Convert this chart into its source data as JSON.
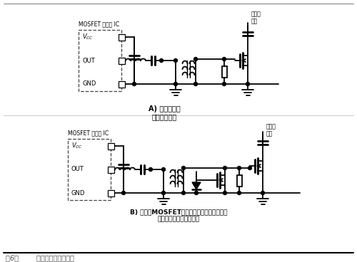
{
  "bg_color": "#ffffff",
  "fig_title": "图6：        栅极驱动变压器应用",
  "circuit_A_label": "A) 单开关正激\n栅极驱动方案",
  "circuit_B_label": "B) 具有从MOSFET移走负栅极驱动电压电路的\n单开关正激栅极驱动方案",
  "mosfet_ic_label": "MOSFET 驱动器 IC",
  "transformer_label": "变压器\n绕组",
  "vcc_label": "$V_{CC}$",
  "out_label": "OUT",
  "gnd_label": "GND",
  "figsize": [
    5.0,
    3.68
  ],
  "dpi": 100
}
